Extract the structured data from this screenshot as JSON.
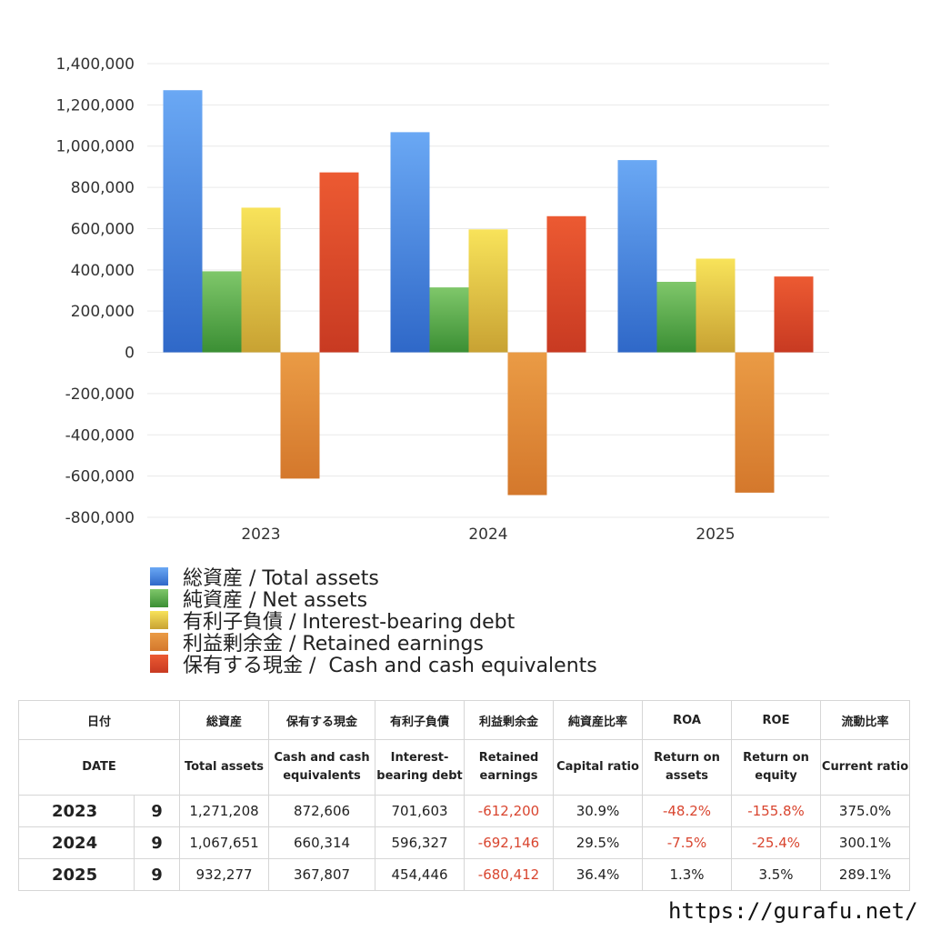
{
  "chart_data": {
    "type": "bar",
    "categories": [
      "2023",
      "2024",
      "2025"
    ],
    "series": [
      {
        "name": "総資産 / Total assets",
        "values": [
          1271208,
          1067651,
          932277
        ],
        "color_top": "#6aa8f4",
        "color_bottom": "#2f68c8"
      },
      {
        "name": "純資産 / Net assets",
        "values": [
          393000,
          315000,
          342000
        ],
        "color_top": "#7fc76a",
        "color_bottom": "#3b8f34"
      },
      {
        "name": "有利子負債 / Interest-bearing debt",
        "values": [
          701603,
          596327,
          454446
        ],
        "color_top": "#f8e35a",
        "color_bottom": "#c8a233"
      },
      {
        "name": "利益剰余金 / Retained earnings",
        "values": [
          -612200,
          -692146,
          -680412
        ],
        "color_top": "#ea9b45",
        "color_bottom": "#d4782c"
      },
      {
        "name": "保有する現金 /  Cash and cash equivalents",
        "values": [
          872606,
          660314,
          367807
        ],
        "color_top": "#ec5a32",
        "color_bottom": "#c83a22"
      }
    ],
    "ylim": [
      -800000,
      1400000
    ],
    "yticks": [
      "1,400,000",
      "1,200,000",
      "1,000,000",
      "800,000",
      "600,000",
      "400,000",
      "200,000",
      "0",
      "-200,000",
      "-400,000",
      "-600,000",
      "-800,000"
    ],
    "grid": true,
    "legend_position": "bottom"
  },
  "table": {
    "headers_jp": [
      "日付",
      "総資産",
      "保有する現金",
      "有利子負債",
      "利益剰余金",
      "純資産比率",
      "ROA",
      "ROE",
      "流動比率"
    ],
    "headers_en": [
      "DATE",
      "Total assets",
      "Cash and cash equivalents",
      "Interest-bearing debt",
      "Retained earnings",
      "Capital ratio",
      "Return on assets",
      "Return on equity",
      "Current ratio"
    ],
    "rows": [
      {
        "year": "2023",
        "month": "9",
        "total_assets": "1,271,208",
        "cash": "872,606",
        "debt": "701,603",
        "retained": "-612,200",
        "capital_ratio": "30.9%",
        "roa": "-48.2%",
        "roe": "-155.8%",
        "current_ratio": "375.0%"
      },
      {
        "year": "2024",
        "month": "9",
        "total_assets": "1,067,651",
        "cash": "660,314",
        "debt": "596,327",
        "retained": "-692,146",
        "capital_ratio": "29.5%",
        "roa": "-7.5%",
        "roe": "-25.4%",
        "current_ratio": "300.1%"
      },
      {
        "year": "2025",
        "month": "9",
        "total_assets": "932,277",
        "cash": "367,807",
        "debt": "454,446",
        "retained": "-680,412",
        "capital_ratio": "36.4%",
        "roa": "1.3%",
        "roe": "3.5%",
        "current_ratio": "289.1%"
      }
    ]
  },
  "footer": {
    "url": "https://gurafu.net/"
  },
  "colors": {
    "negative_text": "#d9452f",
    "gridline": "#e9e9e9"
  }
}
